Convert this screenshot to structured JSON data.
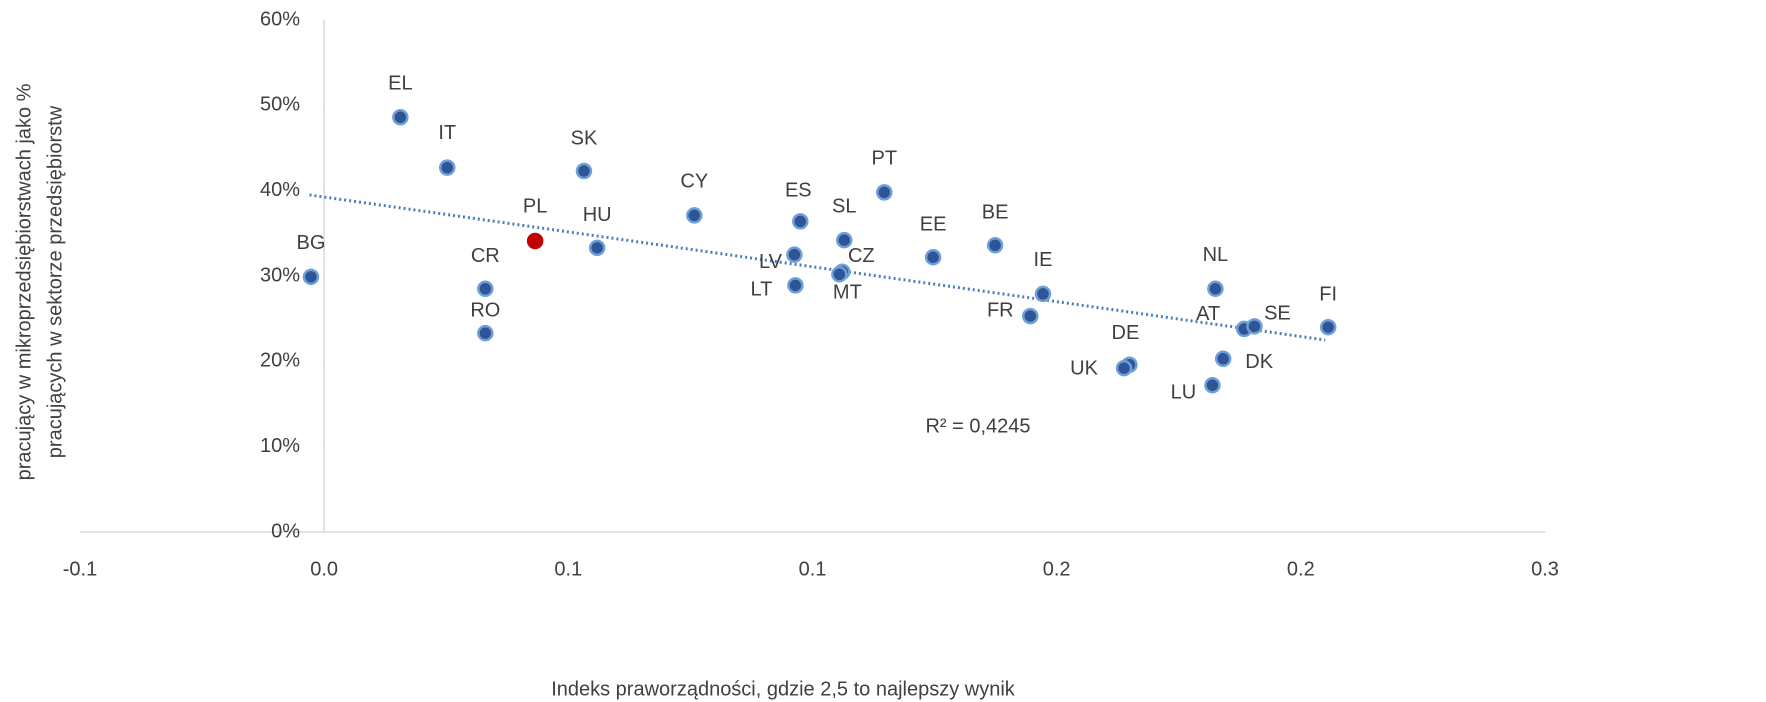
{
  "chart_data": {
    "type": "scatter",
    "x_label": "Indeks praworządności, gdzie 2,5 to najlepszy wynik",
    "y_label": [
      "pracujący w mikroprzedsiębiorstwach jako %",
      "pracujących w sektorze przedsiębiorstw"
    ],
    "annotation": "R² = 0,4245",
    "labels": [
      "BG",
      "EL",
      "IT",
      "PL",
      "CR",
      "RO",
      "SK",
      "HU",
      "CY",
      "ES",
      "LV",
      "LT",
      "SL",
      "CZ",
      "MT",
      "PT",
      "EE",
      "BE",
      "IE",
      "FR",
      "DE",
      "UK",
      "NL",
      "AT",
      "SE",
      "DK",
      "LU",
      "FI"
    ],
    "x": [
      -0.0027,
      0.0156,
      0.0252,
      0.0432,
      0.033,
      0.033,
      0.0532,
      0.0559,
      0.0758,
      0.0975,
      0.0963,
      0.0965,
      0.1065,
      0.1061,
      0.1055,
      0.1147,
      0.1247,
      0.1374,
      0.1472,
      0.1446,
      0.1649,
      0.1638,
      0.1825,
      0.1884,
      0.1905,
      0.1841,
      0.1819,
      0.2056
    ],
    "values": [
      29.9,
      48.6,
      42.7,
      34.1,
      28.5,
      23.3,
      42.3,
      33.3,
      37.1,
      36.4,
      32.5,
      28.9,
      34.2,
      30.5,
      30.2,
      39.8,
      32.2,
      33.6,
      27.9,
      25.3,
      19.6,
      19.2,
      28.5,
      23.8,
      24.1,
      20.3,
      17.2,
      24.0
    ],
    "colors": [
      "#2f5597",
      "#2f5597",
      "#2f5597",
      "#c00000",
      "#2f5597",
      "#2f5597",
      "#2f5597",
      "#2f5597",
      "#2f5597",
      "#2f5597",
      "#2f5597",
      "#2f5597",
      "#2f5597",
      "#2f5597",
      "#2f5597",
      "#2f5597",
      "#2f5597",
      "#2f5597",
      "#2f5597",
      "#2f5597",
      "#2f5597",
      "#2f5597",
      "#2f5597",
      "#2f5597",
      "#2f5597",
      "#2f5597",
      "#2f5597",
      "#2f5597"
    ],
    "trendline": {
      "x": [
        -0.003,
        0.205
      ],
      "values": [
        39.5,
        22.5
      ],
      "color": "#4a7ebb"
    },
    "xlim": [
      -0.05,
      0.25
    ],
    "xticks": [
      {
        "value": -0.05,
        "label": "-0.1"
      },
      {
        "value": 0,
        "label": "0.0"
      },
      {
        "value": 0.05,
        "label": "0.1"
      },
      {
        "value": 0.1,
        "label": "0.1"
      },
      {
        "value": 0.15,
        "label": "0.2"
      },
      {
        "value": 0.2,
        "label": "0.2"
      },
      {
        "value": 0.25,
        "label": "0.3"
      }
    ],
    "ylim": [
      0,
      60
    ],
    "yticks": [
      {
        "value": 0,
        "label": "0%"
      },
      {
        "value": 10,
        "label": "10%"
      },
      {
        "value": 20,
        "label": "20%"
      },
      {
        "value": 30,
        "label": "30%"
      },
      {
        "value": 40,
        "label": "40%"
      },
      {
        "value": 50,
        "label": "50%"
      },
      {
        "value": 60,
        "label": "60%"
      }
    ]
  }
}
